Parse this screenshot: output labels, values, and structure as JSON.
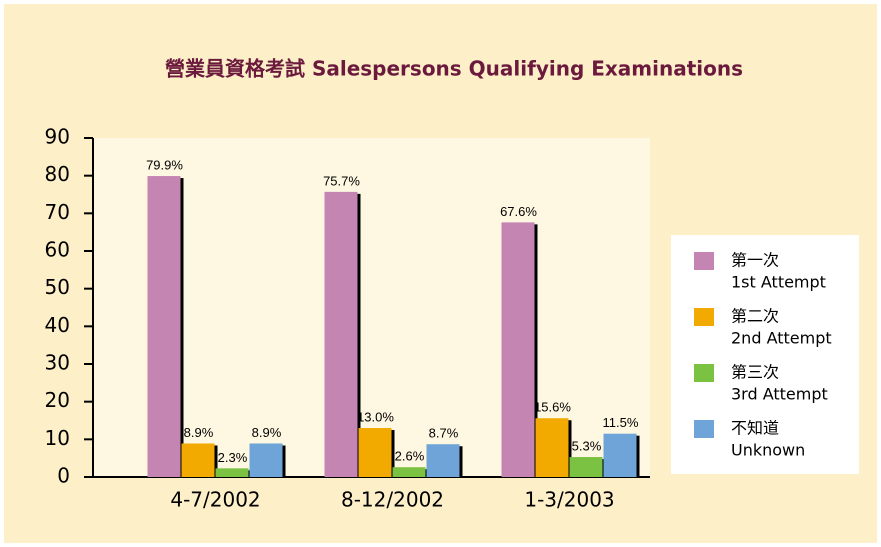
{
  "chart_data": {
    "type": "bar",
    "title": "營業員資格考試  Salespersons Qualifying Examinations",
    "categories": [
      "4-7/2002",
      "8-12/2002",
      "1-3/2003"
    ],
    "series": [
      {
        "name": [
          "第一次",
          "1st Attempt"
        ],
        "color": "#c585b3",
        "values": [
          79.9,
          75.7,
          67.6
        ],
        "value_labels": [
          "79.9%",
          "75.7%",
          "67.6%"
        ]
      },
      {
        "name": [
          "第二次",
          "2nd Attempt"
        ],
        "color": "#f2a900",
        "values": [
          8.9,
          13.0,
          15.6
        ],
        "value_labels": [
          "8.9%",
          "13.0%",
          "15.6%"
        ]
      },
      {
        "name": [
          "第三次",
          "3rd Attempt"
        ],
        "color": "#7bc142",
        "values": [
          2.3,
          2.6,
          5.3
        ],
        "value_labels": [
          "2.3%",
          "2.6%",
          "5.3%"
        ]
      },
      {
        "name": [
          "不知道",
          "Unknown"
        ],
        "color": "#6ea4d8",
        "values": [
          8.9,
          8.7,
          11.5
        ],
        "value_labels": [
          "8.9%",
          "8.7%",
          "11.5%"
        ]
      }
    ],
    "ylim": [
      0,
      90
    ],
    "yticks": [
      0,
      10,
      20,
      30,
      40,
      50,
      60,
      70,
      80,
      90
    ],
    "grid": false,
    "legend": "right"
  }
}
